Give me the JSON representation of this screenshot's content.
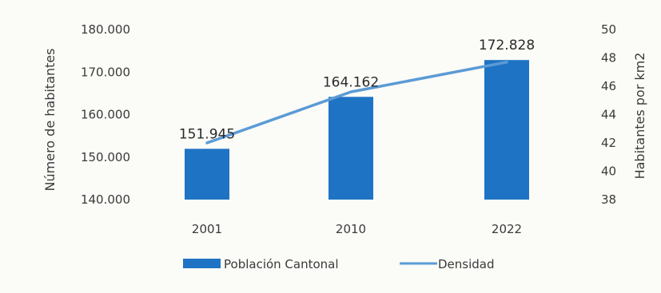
{
  "chart_data": {
    "type": "bar",
    "title": "",
    "categories": [
      "2001",
      "2010",
      "2022"
    ],
    "series": [
      {
        "name": "Población Cantonal",
        "type": "bar",
        "axis": "left",
        "color": "#1f73c4",
        "values": [
          151945,
          164162,
          172828
        ],
        "data_labels": [
          "151.945",
          "164.162",
          "172.828"
        ]
      },
      {
        "name": "Densidad",
        "type": "line",
        "axis": "right",
        "color": "#5a9bd5",
        "values": [
          42.0,
          45.6,
          47.7
        ]
      }
    ],
    "y_left": {
      "label": "Número de habitantes",
      "ylim": [
        140000,
        180000
      ],
      "ticks": [
        140000,
        150000,
        160000,
        170000,
        180000
      ],
      "tick_labels": [
        "140.000",
        "150.000",
        "160.000",
        "170.000",
        "180.000"
      ]
    },
    "y_right": {
      "label": "Habitantes por km2",
      "ylim": [
        38,
        50
      ],
      "ticks": [
        38,
        40,
        42,
        44,
        46,
        48,
        50
      ],
      "tick_labels": [
        "38",
        "40",
        "42",
        "44",
        "46",
        "48",
        "50"
      ]
    },
    "legend": {
      "placement": "bottom",
      "entries": [
        "Población Cantonal",
        "Densidad"
      ]
    },
    "grid": false
  }
}
